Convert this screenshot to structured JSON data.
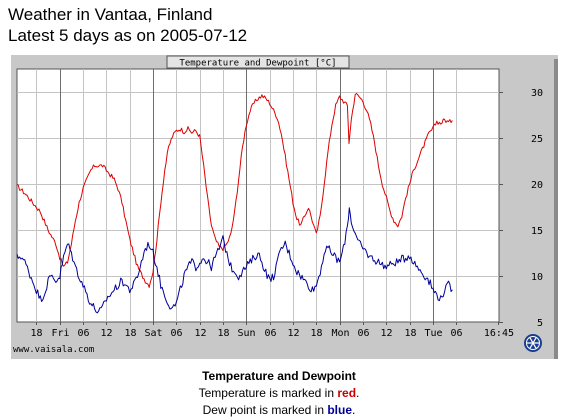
{
  "header": {
    "title_line1": "Weather in Vantaa, Finland",
    "title_line2": "Latest 5 days as on 2005-07-12"
  },
  "chart_data": {
    "type": "line",
    "title": "Temperature and Dewpoint [°C]",
    "ylim": [
      5,
      32.5
    ],
    "y_ticks": [
      5,
      10,
      15,
      20,
      25,
      30
    ],
    "grid": true,
    "x_range_hours": [
      -5,
      119
    ],
    "x_ticks": [
      {
        "label": "18",
        "h": 0
      },
      {
        "label": "Fri",
        "h": 6
      },
      {
        "label": "06",
        "h": 12
      },
      {
        "label": "12",
        "h": 18
      },
      {
        "label": "18",
        "h": 24
      },
      {
        "label": "Sat",
        "h": 30
      },
      {
        "label": "06",
        "h": 36
      },
      {
        "label": "12",
        "h": 42
      },
      {
        "label": "18",
        "h": 48
      },
      {
        "label": "Sun",
        "h": 54
      },
      {
        "label": "06",
        "h": 60
      },
      {
        "label": "12",
        "h": 66
      },
      {
        "label": "18",
        "h": 72
      },
      {
        "label": "Mon",
        "h": 78
      },
      {
        "label": "06",
        "h": 84
      },
      {
        "label": "12",
        "h": 90
      },
      {
        "label": "18",
        "h": 96
      },
      {
        "label": "Tue",
        "h": 102
      },
      {
        "label": "06",
        "h": 108
      },
      {
        "label": "16:45",
        "h": 118.75
      }
    ],
    "day_separators_hours": [
      6,
      30,
      54,
      78,
      102
    ],
    "source_label": "www.vaisala.com",
    "series": [
      {
        "color": "#dd0000",
        "points": [
          [
            -5,
            19.8
          ],
          [
            -3,
            19.0
          ],
          [
            -1,
            18.0
          ],
          [
            1,
            17.0
          ],
          [
            3,
            15.0
          ],
          [
            5,
            13.5
          ],
          [
            6,
            12.0
          ],
          [
            7,
            11.0
          ],
          [
            8,
            11.5
          ],
          [
            9,
            13.5
          ],
          [
            10,
            16.0
          ],
          [
            11,
            18.0
          ],
          [
            12,
            19.5
          ],
          [
            13,
            20.5
          ],
          [
            14,
            21.5
          ],
          [
            15,
            22.0
          ],
          [
            16,
            22.0
          ],
          [
            17,
            22.0
          ],
          [
            18,
            21.5
          ],
          [
            19,
            21.0
          ],
          [
            20,
            20.5
          ],
          [
            21,
            19.5
          ],
          [
            22,
            18.0
          ],
          [
            23,
            16.0
          ],
          [
            24,
            14.0
          ],
          [
            25,
            12.5
          ],
          [
            26,
            11.0
          ],
          [
            27,
            10.2
          ],
          [
            28,
            9.5
          ],
          [
            29,
            9.0
          ],
          [
            30,
            10.5
          ],
          [
            31,
            14.0
          ],
          [
            32,
            18.0
          ],
          [
            33,
            21.5
          ],
          [
            34,
            24.0
          ],
          [
            35,
            25.2
          ],
          [
            36,
            25.8
          ],
          [
            37,
            26.0
          ],
          [
            38,
            25.7
          ],
          [
            39,
            26.0
          ],
          [
            40,
            25.6
          ],
          [
            41,
            25.8
          ],
          [
            42,
            25.2
          ],
          [
            43,
            22.0
          ],
          [
            44,
            18.5
          ],
          [
            45,
            15.5
          ],
          [
            46,
            14.0
          ],
          [
            47,
            13.2
          ],
          [
            48,
            13.0
          ],
          [
            49,
            13.5
          ],
          [
            50,
            14.5
          ],
          [
            51,
            17.0
          ],
          [
            52,
            20.5
          ],
          [
            53,
            24.0
          ],
          [
            54,
            26.5
          ],
          [
            55,
            28.0
          ],
          [
            56,
            28.8
          ],
          [
            57,
            29.3
          ],
          [
            58,
            29.6
          ],
          [
            59,
            29.3
          ],
          [
            60,
            28.8
          ],
          [
            61,
            28.0
          ],
          [
            62,
            27.2
          ],
          [
            63,
            25.5
          ],
          [
            64,
            23.0
          ],
          [
            65,
            20.5
          ],
          [
            66,
            18.0
          ],
          [
            67,
            16.2
          ],
          [
            68,
            15.5
          ],
          [
            69,
            16.5
          ],
          [
            70,
            17.5
          ],
          [
            71,
            16.0
          ],
          [
            72,
            14.5
          ],
          [
            73,
            16.5
          ],
          [
            74,
            20.0
          ],
          [
            75,
            23.5
          ],
          [
            76,
            26.5
          ],
          [
            77,
            28.5
          ],
          [
            78,
            29.5
          ],
          [
            79,
            29.0
          ],
          [
            80,
            28.5
          ],
          [
            80.4,
            24.5
          ],
          [
            81,
            27.0
          ],
          [
            82,
            29.8
          ],
          [
            83,
            29.5
          ],
          [
            84,
            29.0
          ],
          [
            85,
            28.0
          ],
          [
            86,
            26.5
          ],
          [
            87,
            24.5
          ],
          [
            88,
            22.0
          ],
          [
            89,
            20.0
          ],
          [
            90,
            18.5
          ],
          [
            91,
            17.0
          ],
          [
            92,
            16.0
          ],
          [
            93,
            15.5
          ],
          [
            94,
            16.5
          ],
          [
            95,
            18.5
          ],
          [
            96,
            20.0
          ],
          [
            97,
            21.5
          ],
          [
            98,
            22.5
          ],
          [
            99,
            23.5
          ],
          [
            100,
            24.5
          ],
          [
            101,
            25.5
          ],
          [
            102,
            26.0
          ],
          [
            103,
            26.8
          ],
          [
            104,
            26.6
          ],
          [
            105,
            27.0
          ],
          [
            106,
            26.7
          ],
          [
            107,
            26.9
          ]
        ]
      },
      {
        "color": "#000099",
        "points": [
          [
            -5,
            12.0
          ],
          [
            -4,
            12.2
          ],
          [
            -3,
            11.5
          ],
          [
            -2,
            10.5
          ],
          [
            -1,
            9.5
          ],
          [
            0,
            8.5
          ],
          [
            1,
            7.5
          ],
          [
            2,
            8.0
          ],
          [
            3,
            9.5
          ],
          [
            4,
            10.0
          ],
          [
            5,
            9.5
          ],
          [
            6,
            10.0
          ],
          [
            7,
            12.0
          ],
          [
            8,
            13.5
          ],
          [
            9,
            12.5
          ],
          [
            10,
            11.0
          ],
          [
            11,
            10.0
          ],
          [
            12,
            9.0
          ],
          [
            13,
            8.0
          ],
          [
            14,
            7.0
          ],
          [
            15,
            6.5
          ],
          [
            16,
            6.0
          ],
          [
            17,
            6.5
          ],
          [
            18,
            7.5
          ],
          [
            19,
            8.0
          ],
          [
            20,
            8.5
          ],
          [
            21,
            9.0
          ],
          [
            22,
            9.5
          ],
          [
            23,
            9.0
          ],
          [
            24,
            8.5
          ],
          [
            25,
            9.0
          ],
          [
            26,
            10.0
          ],
          [
            27,
            11.5
          ],
          [
            28,
            13.0
          ],
          [
            29,
            13.5
          ],
          [
            30,
            12.5
          ],
          [
            31,
            11.0
          ],
          [
            32,
            9.0
          ],
          [
            33,
            8.0
          ],
          [
            34,
            7.0
          ],
          [
            35,
            6.5
          ],
          [
            36,
            7.0
          ],
          [
            37,
            8.5
          ],
          [
            38,
            10.0
          ],
          [
            39,
            11.0
          ],
          [
            40,
            11.5
          ],
          [
            41,
            11.0
          ],
          [
            42,
            11.5
          ],
          [
            43,
            12.0
          ],
          [
            44,
            11.5
          ],
          [
            45,
            11.0
          ],
          [
            46,
            12.0
          ],
          [
            47,
            13.0
          ],
          [
            48,
            14.0
          ],
          [
            49,
            12.5
          ],
          [
            50,
            11.0
          ],
          [
            51,
            10.5
          ],
          [
            52,
            10.0
          ],
          [
            53,
            10.5
          ],
          [
            54,
            11.0
          ],
          [
            55,
            11.5
          ],
          [
            56,
            12.0
          ],
          [
            57,
            12.5
          ],
          [
            58,
            11.5
          ],
          [
            59,
            10.5
          ],
          [
            60,
            9.5
          ],
          [
            61,
            10.0
          ],
          [
            62,
            11.5
          ],
          [
            63,
            13.0
          ],
          [
            64,
            13.5
          ],
          [
            65,
            12.5
          ],
          [
            66,
            11.5
          ],
          [
            67,
            10.5
          ],
          [
            68,
            10.0
          ],
          [
            69,
            9.5
          ],
          [
            70,
            9.0
          ],
          [
            71,
            8.5
          ],
          [
            72,
            9.0
          ],
          [
            73,
            10.5
          ],
          [
            74,
            12.5
          ],
          [
            75,
            13.0
          ],
          [
            76,
            12.5
          ],
          [
            77,
            12.0
          ],
          [
            78,
            11.5
          ],
          [
            79,
            13.0
          ],
          [
            80,
            15.5
          ],
          [
            80.5,
            17.5
          ],
          [
            81,
            16.0
          ],
          [
            82,
            14.5
          ],
          [
            83,
            13.5
          ],
          [
            84,
            13.0
          ],
          [
            85,
            12.5
          ],
          [
            86,
            12.0
          ],
          [
            87,
            11.8
          ],
          [
            88,
            11.5
          ],
          [
            89,
            11.3
          ],
          [
            90,
            11.0
          ],
          [
            91,
            11.2
          ],
          [
            92,
            11.5
          ],
          [
            93,
            11.5
          ],
          [
            94,
            11.8
          ],
          [
            95,
            12.0
          ],
          [
            96,
            12.3
          ],
          [
            97,
            11.5
          ],
          [
            98,
            11.0
          ],
          [
            99,
            10.5
          ],
          [
            100,
            10.0
          ],
          [
            101,
            9.5
          ],
          [
            102,
            8.5
          ],
          [
            103,
            8.0
          ],
          [
            104,
            7.5
          ],
          [
            105,
            8.5
          ],
          [
            106,
            9.0
          ],
          [
            107,
            8.5
          ]
        ]
      }
    ]
  },
  "captions": {
    "title": "Temperature and Dewpoint",
    "temp_prefix": "Temperature is marked in ",
    "temp_color_word": "red",
    "temp_suffix": ".",
    "dew_prefix": "Dew point is marked in ",
    "dew_color_word": "blue",
    "dew_suffix": "."
  },
  "colors": {
    "temperature": "#dd0000",
    "dewpoint": "#000099",
    "frame_bg": "#c8c8c8",
    "plot_bg": "#ffffff"
  },
  "icons": {
    "logo": "vaisala-logo-icon"
  }
}
